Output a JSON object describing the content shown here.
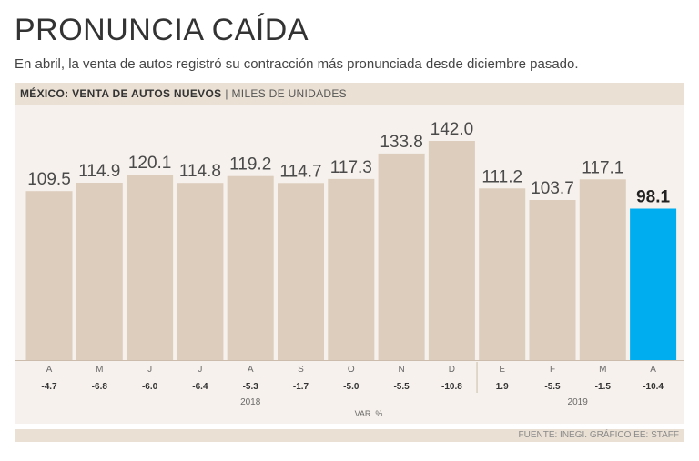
{
  "header": {
    "title": "PRONUNCIA CAÍDA",
    "subtitle": "En abril, la venta de autos registró su contracción más pronunciada desde diciembre pasado.",
    "band_bold": "MÉXICO: VENTA DE AUTOS NUEVOS",
    "band_separator": "|",
    "band_unit": "MILES DE UNIDADES"
  },
  "footer": {
    "source": "FUENTE: INEGI. GRÁFICO EE: STAFF"
  },
  "colors": {
    "bar": "#dccdbd",
    "highlight": "#00aeef",
    "panel": "#f6f1ec",
    "band": "#eae0d4"
  },
  "chart_data": {
    "type": "bar",
    "categories": [
      "A",
      "M",
      "J",
      "J",
      "A",
      "S",
      "O",
      "N",
      "D",
      "E",
      "F",
      "M",
      "A"
    ],
    "values": [
      109.5,
      114.9,
      120.1,
      114.8,
      119.2,
      114.7,
      117.3,
      133.8,
      142.0,
      111.2,
      103.7,
      117.1,
      98.1
    ],
    "value_labels": [
      "109.5",
      "114.9",
      "120.1",
      "114.8",
      "119.2",
      "114.7",
      "117.3",
      "133.8",
      "142.0",
      "111.2",
      "103.7",
      "117.1",
      "98.1"
    ],
    "var_pct": [
      "-4.7",
      "-6.8",
      "-6.0",
      "-6.4",
      "-5.3",
      "-1.7",
      "-5.0",
      "-5.5",
      "-10.8",
      "1.9",
      "-5.5",
      "-1.5",
      "-10.4"
    ],
    "years": [
      {
        "label": "2018",
        "start": 0,
        "end": 8
      },
      {
        "label": "2019",
        "start": 9,
        "end": 12
      }
    ],
    "var_label": "VAR. %",
    "highlight_index": 12,
    "ylim": [
      0,
      150
    ],
    "grid": false
  }
}
